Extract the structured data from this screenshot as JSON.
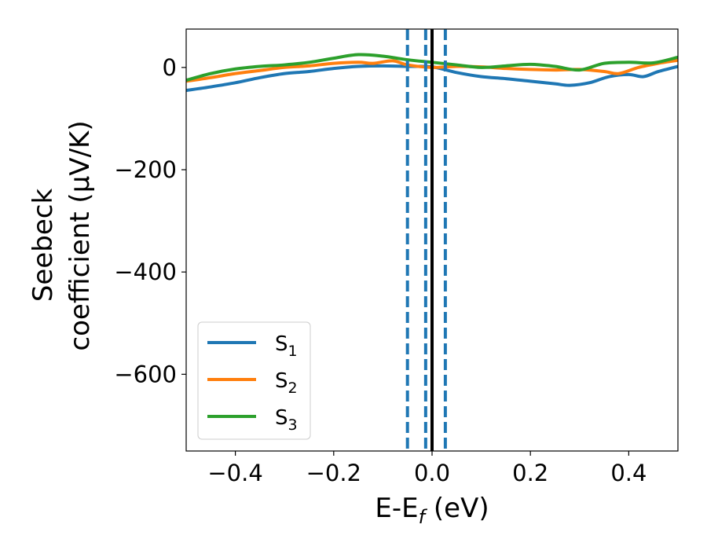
{
  "chart_data": {
    "type": "line",
    "xlabel": "E-E_f (eV)",
    "xlabel_parts": {
      "main": "E-E",
      "sub": "f",
      "rest": " (eV)"
    },
    "ylabel_line1": "Seebeck",
    "ylabel_line2": "coefficient  (μV/K)",
    "xlim": [
      -0.5,
      0.5
    ],
    "ylim": [
      -750,
      75
    ],
    "xticks": [
      -0.4,
      -0.2,
      0.0,
      0.2,
      0.4
    ],
    "xtick_labels": [
      "−0.4",
      "−0.2",
      "0.0",
      "0.2",
      "0.4"
    ],
    "yticks": [
      0,
      -200,
      -400,
      -600
    ],
    "ytick_labels": [
      "0",
      "−200",
      "−400",
      "−600"
    ],
    "grid": false,
    "legend_position": "lower-left",
    "series": [
      {
        "name": "S1",
        "label_main": "S",
        "label_sub": "1",
        "color": "#1f77b4",
        "points": [
          [
            -0.5,
            -45
          ],
          [
            -0.45,
            -38
          ],
          [
            -0.4,
            -30
          ],
          [
            -0.35,
            -20
          ],
          [
            -0.3,
            -12
          ],
          [
            -0.25,
            -8
          ],
          [
            -0.2,
            -2
          ],
          [
            -0.15,
            2
          ],
          [
            -0.1,
            3
          ],
          [
            -0.05,
            2
          ],
          [
            0.0,
            1
          ],
          [
            0.05,
            -10
          ],
          [
            0.1,
            -18
          ],
          [
            0.15,
            -22
          ],
          [
            0.2,
            -27
          ],
          [
            0.25,
            -32
          ],
          [
            0.28,
            -35
          ],
          [
            0.32,
            -30
          ],
          [
            0.36,
            -18
          ],
          [
            0.4,
            -14
          ],
          [
            0.43,
            -18
          ],
          [
            0.46,
            -8
          ],
          [
            0.5,
            2
          ]
        ]
      },
      {
        "name": "S2",
        "label_main": "S",
        "label_sub": "2",
        "color": "#ff7f0e",
        "points": [
          [
            -0.5,
            -27
          ],
          [
            -0.45,
            -20
          ],
          [
            -0.4,
            -12
          ],
          [
            -0.35,
            -6
          ],
          [
            -0.3,
            0
          ],
          [
            -0.25,
            3
          ],
          [
            -0.2,
            8
          ],
          [
            -0.15,
            10
          ],
          [
            -0.12,
            8
          ],
          [
            -0.08,
            13
          ],
          [
            -0.05,
            5
          ],
          [
            0.0,
            0
          ],
          [
            0.05,
            2
          ],
          [
            0.1,
            1
          ],
          [
            0.15,
            -2
          ],
          [
            0.2,
            -4
          ],
          [
            0.25,
            -5
          ],
          [
            0.3,
            -4
          ],
          [
            0.35,
            -8
          ],
          [
            0.38,
            -12
          ],
          [
            0.42,
            0
          ],
          [
            0.46,
            8
          ],
          [
            0.5,
            14
          ]
        ]
      },
      {
        "name": "S3",
        "label_main": "S",
        "label_sub": "3",
        "color": "#2ca02c",
        "points": [
          [
            -0.5,
            -25
          ],
          [
            -0.45,
            -12
          ],
          [
            -0.4,
            -3
          ],
          [
            -0.35,
            2
          ],
          [
            -0.3,
            5
          ],
          [
            -0.25,
            10
          ],
          [
            -0.2,
            18
          ],
          [
            -0.15,
            25
          ],
          [
            -0.1,
            22
          ],
          [
            -0.05,
            15
          ],
          [
            0.0,
            10
          ],
          [
            0.05,
            5
          ],
          [
            0.1,
            0
          ],
          [
            0.15,
            3
          ],
          [
            0.2,
            6
          ],
          [
            0.25,
            2
          ],
          [
            0.3,
            -5
          ],
          [
            0.35,
            8
          ],
          [
            0.4,
            10
          ],
          [
            0.45,
            9
          ],
          [
            0.5,
            20
          ]
        ]
      }
    ],
    "vertical_lines": [
      {
        "x": -0.05,
        "style": "dashed",
        "color": "#1f77b4"
      },
      {
        "x": -0.013,
        "style": "dashed",
        "color": "#1f77b4"
      },
      {
        "x": 0.0,
        "style": "solid",
        "color": "#000000"
      },
      {
        "x": 0.027,
        "style": "dashed",
        "color": "#1f77b4"
      }
    ]
  }
}
